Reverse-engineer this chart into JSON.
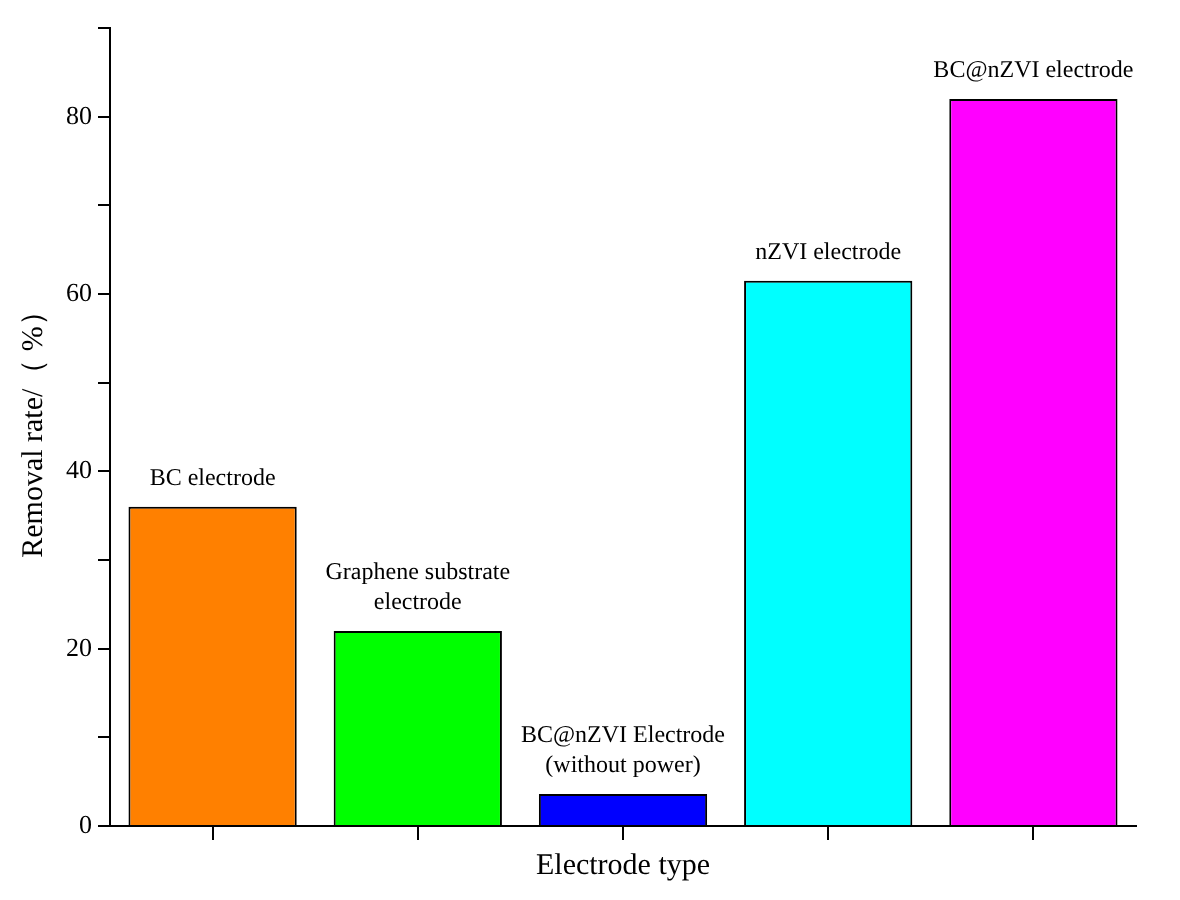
{
  "chart_data": {
    "type": "bar",
    "xlabel": "Electrode type",
    "ylabel": "Removal rate/（ %）",
    "categories": [
      "BC electrode",
      "Graphene substrate electrode",
      "BC@nZVI Electrode (without power)",
      "nZVI electrode",
      "BC@nZVI electrode"
    ],
    "values": [
      36,
      22,
      3.6,
      61.5,
      82
    ],
    "colors": [
      "#ff8000",
      "#00ff00",
      "#0000ff",
      "#00ffff",
      "#ff00ff"
    ],
    "ylim": [
      0,
      90
    ],
    "yticks": [
      0,
      {
        "value": 10,
        "label": null
      },
      20,
      {
        "value": 30,
        "label": null
      },
      40,
      {
        "value": 50,
        "label": null
      },
      60,
      {
        "value": 70,
        "label": null
      },
      80,
      {
        "value": 90,
        "label": null
      }
    ],
    "tick_labels": "y",
    "grid": false,
    "legend": false
  }
}
